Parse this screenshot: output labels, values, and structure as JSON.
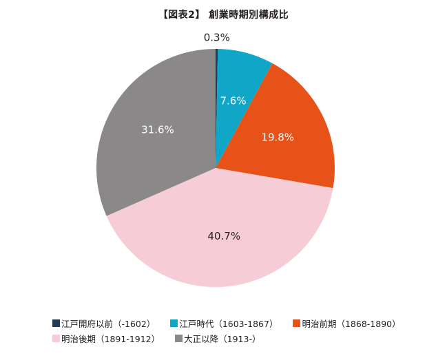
{
  "chart_data": {
    "type": "pie",
    "title": "【図表2】 創業時期別構成比",
    "start_angle_deg": 0,
    "direction": "clockwise",
    "legend_position": "bottom",
    "slices": [
      {
        "label": "江戸開府以前（-1602）",
        "value": 0.3,
        "value_label": "0.3%",
        "color": "#243b53"
      },
      {
        "label": "江戸時代（1603-1867）",
        "value": 7.6,
        "value_label": "7.6%",
        "color": "#0fa6c7"
      },
      {
        "label": "明治前期（1868-1890）",
        "value": 19.8,
        "value_label": "19.8%",
        "color": "#e75219"
      },
      {
        "label": "明治後期（1891-1912）",
        "value": 40.7,
        "value_label": "40.7%",
        "color": "#f6ccd6"
      },
      {
        "label": "大正以降（1913-）",
        "value": 31.6,
        "value_label": "31.6%",
        "color": "#8a8889"
      }
    ]
  }
}
